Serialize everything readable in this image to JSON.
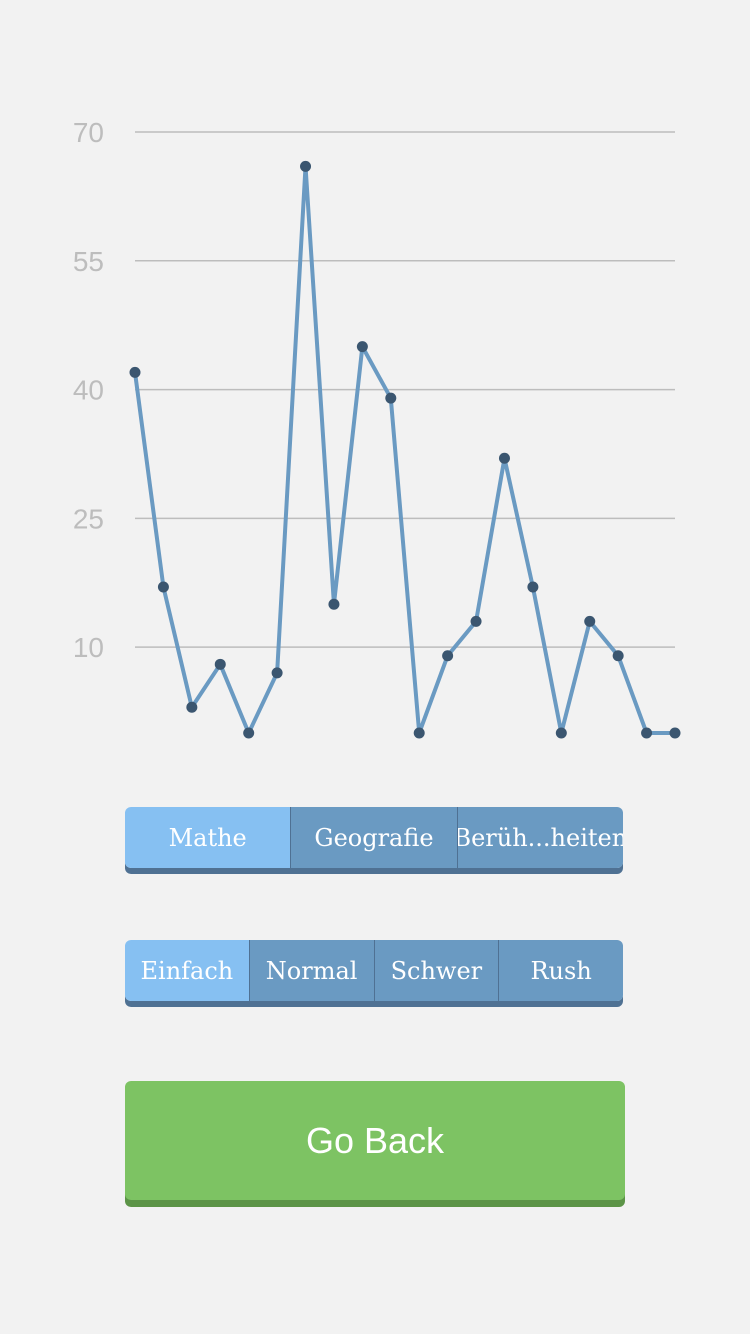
{
  "chart_data": {
    "type": "line",
    "x": [
      1,
      2,
      3,
      4,
      5,
      6,
      7,
      8,
      9,
      10,
      11,
      12,
      13,
      14,
      15,
      16,
      17,
      18,
      19,
      20
    ],
    "values": [
      42,
      17,
      3,
      8,
      0,
      7,
      66,
      15,
      45,
      39,
      0,
      9,
      13,
      32,
      17,
      0,
      13,
      9,
      0,
      0
    ],
    "yticks": [
      "70",
      "55",
      "40",
      "25",
      "10"
    ],
    "ylim": [
      0,
      70
    ],
    "grid": true,
    "colors": {
      "line": "#6a9ac2",
      "point": "#3b5670",
      "grid": "#bdbdbd",
      "tick": "#bdbdbd"
    }
  },
  "categories": {
    "options": [
      "Mathe",
      "Geografie",
      "Berüh...heiten"
    ],
    "selected": 0
  },
  "difficulty": {
    "options": [
      "Einfach",
      "Normal",
      "Schwer",
      "Rush"
    ],
    "selected": 0
  },
  "go_back_label": "Go Back"
}
